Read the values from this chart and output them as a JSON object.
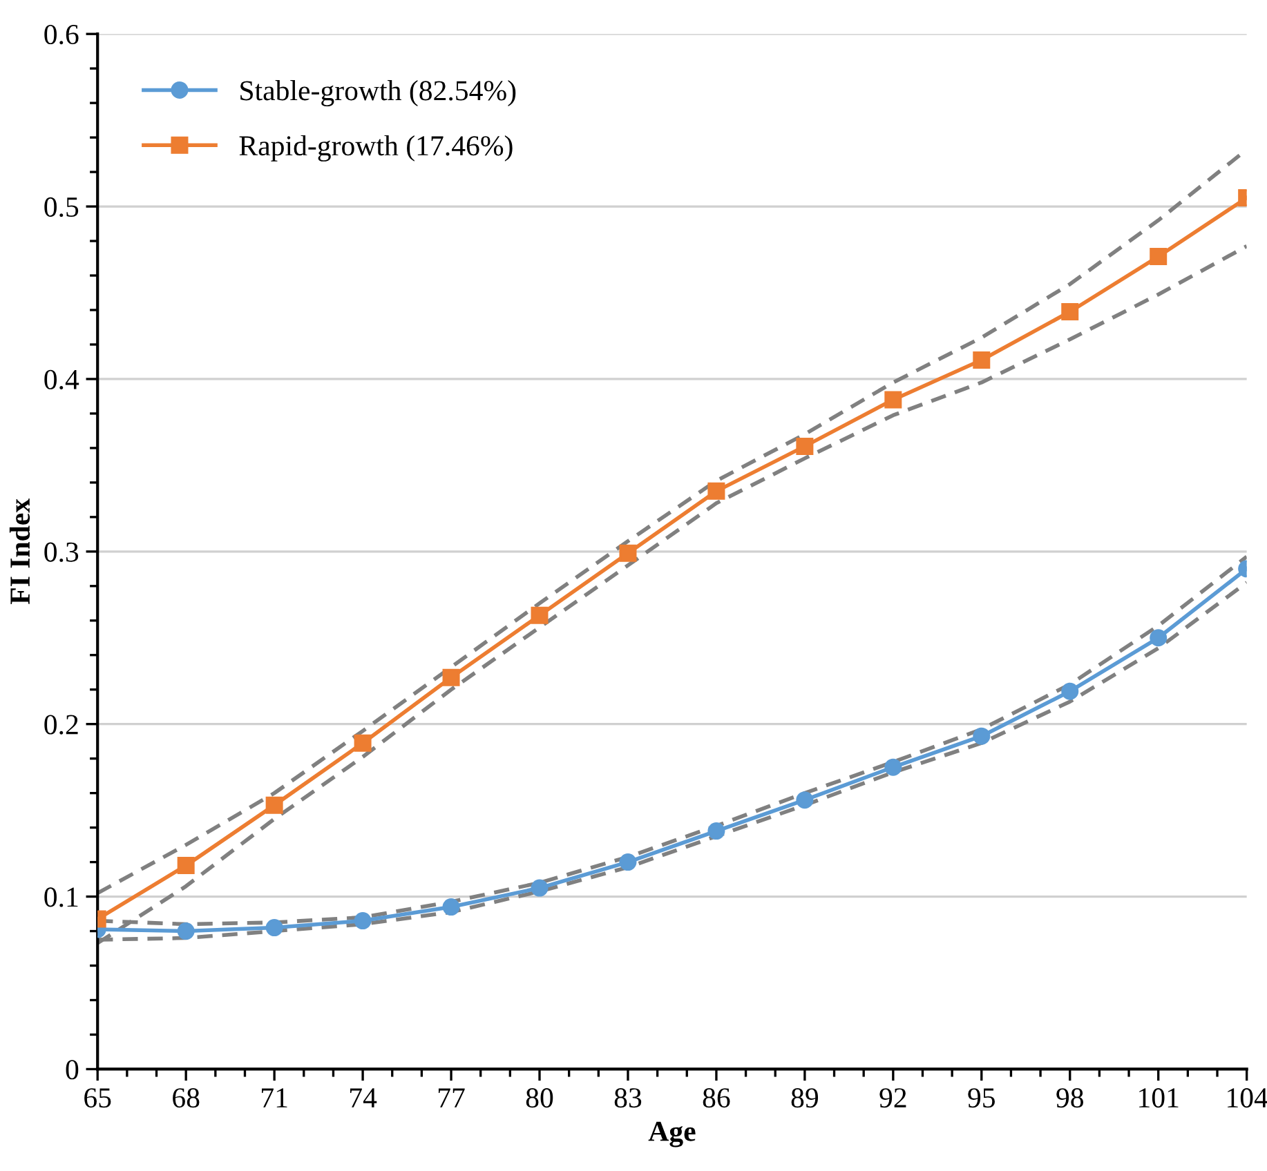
{
  "chart_data": {
    "type": "line",
    "xlabel": "Age",
    "ylabel": "FI Index",
    "x": [
      65,
      68,
      71,
      74,
      77,
      80,
      83,
      86,
      89,
      92,
      95,
      98,
      101,
      104
    ],
    "series": [
      {
        "color": "#808080",
        "line_style": "dashed",
        "marker": "none",
        "values": [
          0.075,
          0.076,
          0.08,
          0.084,
          0.091,
          0.103,
          0.117,
          0.135,
          0.153,
          0.172,
          0.189,
          0.213,
          0.244,
          0.282
        ]
      },
      {
        "color": "#808080",
        "line_style": "dashed",
        "marker": "none",
        "values": [
          0.086,
          0.084,
          0.085,
          0.088,
          0.097,
          0.108,
          0.123,
          0.141,
          0.16,
          0.178,
          0.197,
          0.223,
          0.257,
          0.297
        ]
      },
      {
        "color": "#808080",
        "line_style": "dashed",
        "marker": "none",
        "values": [
          0.073,
          0.106,
          0.145,
          0.181,
          0.22,
          0.256,
          0.292,
          0.328,
          0.354,
          0.379,
          0.398,
          0.423,
          0.449,
          0.477
        ]
      },
      {
        "color": "#808080",
        "line_style": "dashed",
        "marker": "none",
        "values": [
          0.102,
          0.13,
          0.16,
          0.196,
          0.233,
          0.27,
          0.306,
          0.341,
          0.368,
          0.398,
          0.424,
          0.455,
          0.492,
          0.533
        ]
      },
      {
        "name": "Stable-growth (82.54%)",
        "color": "#5b9bd5",
        "marker": "circle",
        "line_style": "solid",
        "values": [
          0.081,
          0.08,
          0.082,
          0.086,
          0.094,
          0.105,
          0.12,
          0.138,
          0.156,
          0.175,
          0.193,
          0.219,
          0.25,
          0.29
        ]
      },
      {
        "name": "Rapid-growth (17.46%)",
        "color": "#ed7d31",
        "marker": "square",
        "line_style": "solid",
        "values": [
          0.087,
          0.118,
          0.153,
          0.189,
          0.227,
          0.263,
          0.299,
          0.335,
          0.361,
          0.388,
          0.411,
          0.439,
          0.471,
          0.505
        ]
      }
    ],
    "xlim": [
      65,
      104
    ],
    "xticks": [
      65,
      68,
      71,
      74,
      77,
      80,
      83,
      86,
      89,
      92,
      95,
      98,
      101,
      104
    ],
    "ylim": [
      0,
      0.6
    ],
    "yticks": [
      0,
      0.1,
      0.2,
      0.3,
      0.4,
      0.5,
      0.6
    ],
    "grid": "y",
    "legend": "top left"
  }
}
